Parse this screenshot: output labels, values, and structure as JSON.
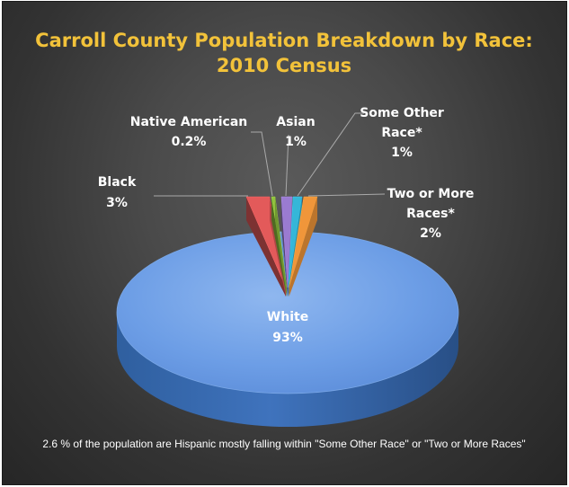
{
  "chart_data": {
    "type": "pie",
    "style": "3d-exploded",
    "title_lines": [
      "Carroll County Population Breakdown by Race:",
      "2010 Census"
    ],
    "slices": [
      {
        "name_lines": [
          "White"
        ],
        "value_label": "93%",
        "value": 93,
        "color": "#4f86d6"
      },
      {
        "name_lines": [
          "Black"
        ],
        "value_label": "3%",
        "value": 3,
        "color": "#e35a5a"
      },
      {
        "name_lines": [
          "Native American"
        ],
        "value_label": "0.2%",
        "value": 0.2,
        "color": "#8fc13e"
      },
      {
        "name_lines": [
          "Asian"
        ],
        "value_label": "1%",
        "value": 1,
        "color": "#9a7bd1"
      },
      {
        "name_lines": [
          "Some Other",
          "Race*"
        ],
        "value_label": "1%",
        "value": 1,
        "color": "#35b6d8"
      },
      {
        "name_lines": [
          "Two or More",
          "Races*"
        ],
        "value_label": "2%",
        "value": 2,
        "color": "#f0963a"
      }
    ],
    "footnote": "2.6 % of the population are Hispanic mostly falling within \"Some Other Race\" or \"Two or More Races\"",
    "colors": {
      "title": "#f2c23a",
      "background": "#3a3a3a",
      "label": "#ffffff"
    }
  }
}
